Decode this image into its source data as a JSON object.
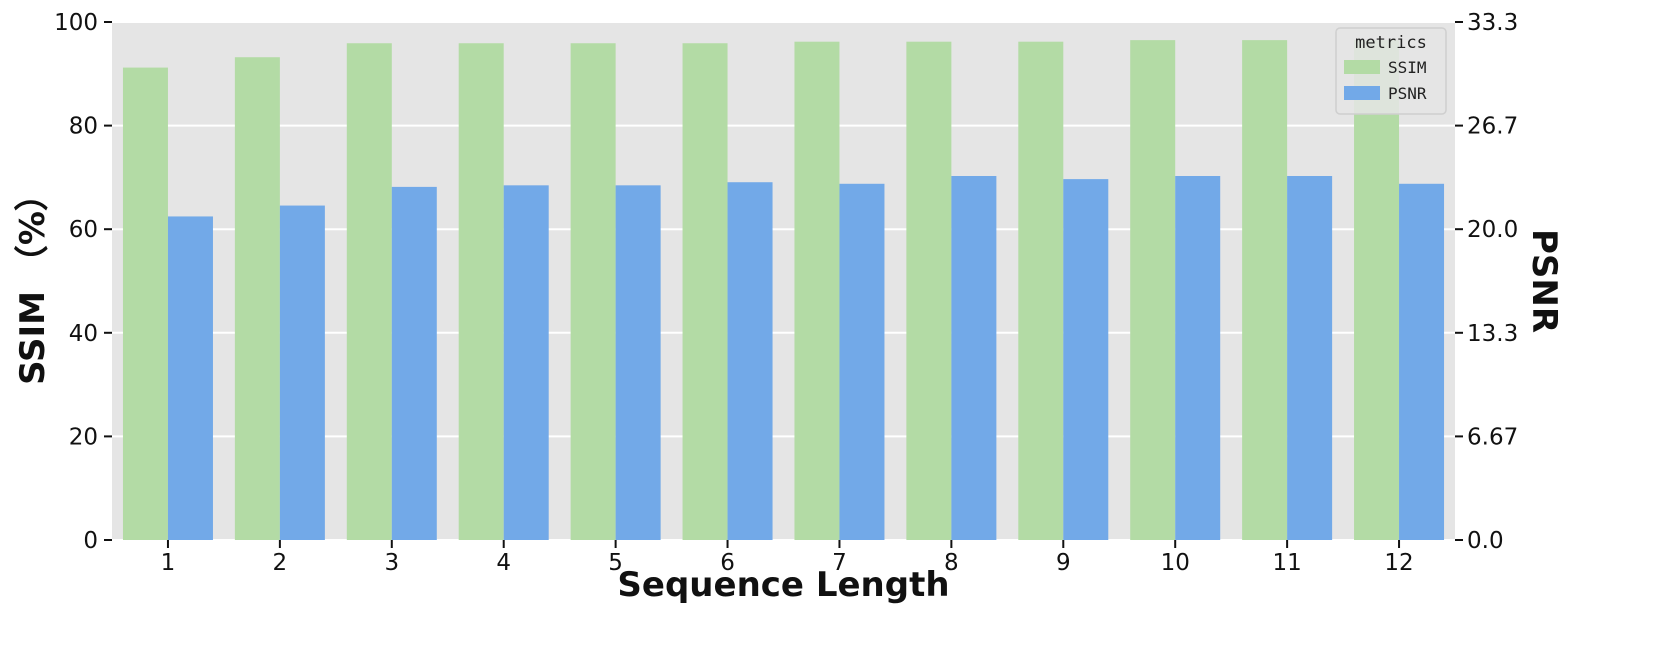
{
  "chart_data": {
    "type": "bar",
    "categories": [
      "1",
      "2",
      "3",
      "4",
      "5",
      "6",
      "7",
      "8",
      "9",
      "10",
      "11",
      "12"
    ],
    "series": [
      {
        "name": "SSIM",
        "axis": "left",
        "color": "#b3dba5",
        "values": [
          91.2,
          93.2,
          95.9,
          95.9,
          95.9,
          95.9,
          96.2,
          96.2,
          96.2,
          96.5,
          96.5,
          96.5
        ]
      },
      {
        "name": "PSNR",
        "axis": "right",
        "color": "#72a9e8",
        "values": [
          20.8,
          21.5,
          22.7,
          22.8,
          22.8,
          23.0,
          22.9,
          23.4,
          23.2,
          23.4,
          23.4,
          22.9
        ]
      }
    ],
    "xlabel": "Sequence Length",
    "ylabel": "SSIM （%）",
    "ylabel_right": "PSNR",
    "ylim": [
      0,
      100
    ],
    "ylim_right": [
      0,
      33.3
    ],
    "yticks": [
      "0",
      "20",
      "40",
      "60",
      "80",
      "100"
    ],
    "yticks_right": [
      "0.0",
      "6.67",
      "13.3",
      "20.0",
      "26.7",
      "33.3"
    ],
    "legend": {
      "title": "metrics",
      "placement": "top-right"
    },
    "grid": true,
    "background": "#e5e5e5"
  }
}
